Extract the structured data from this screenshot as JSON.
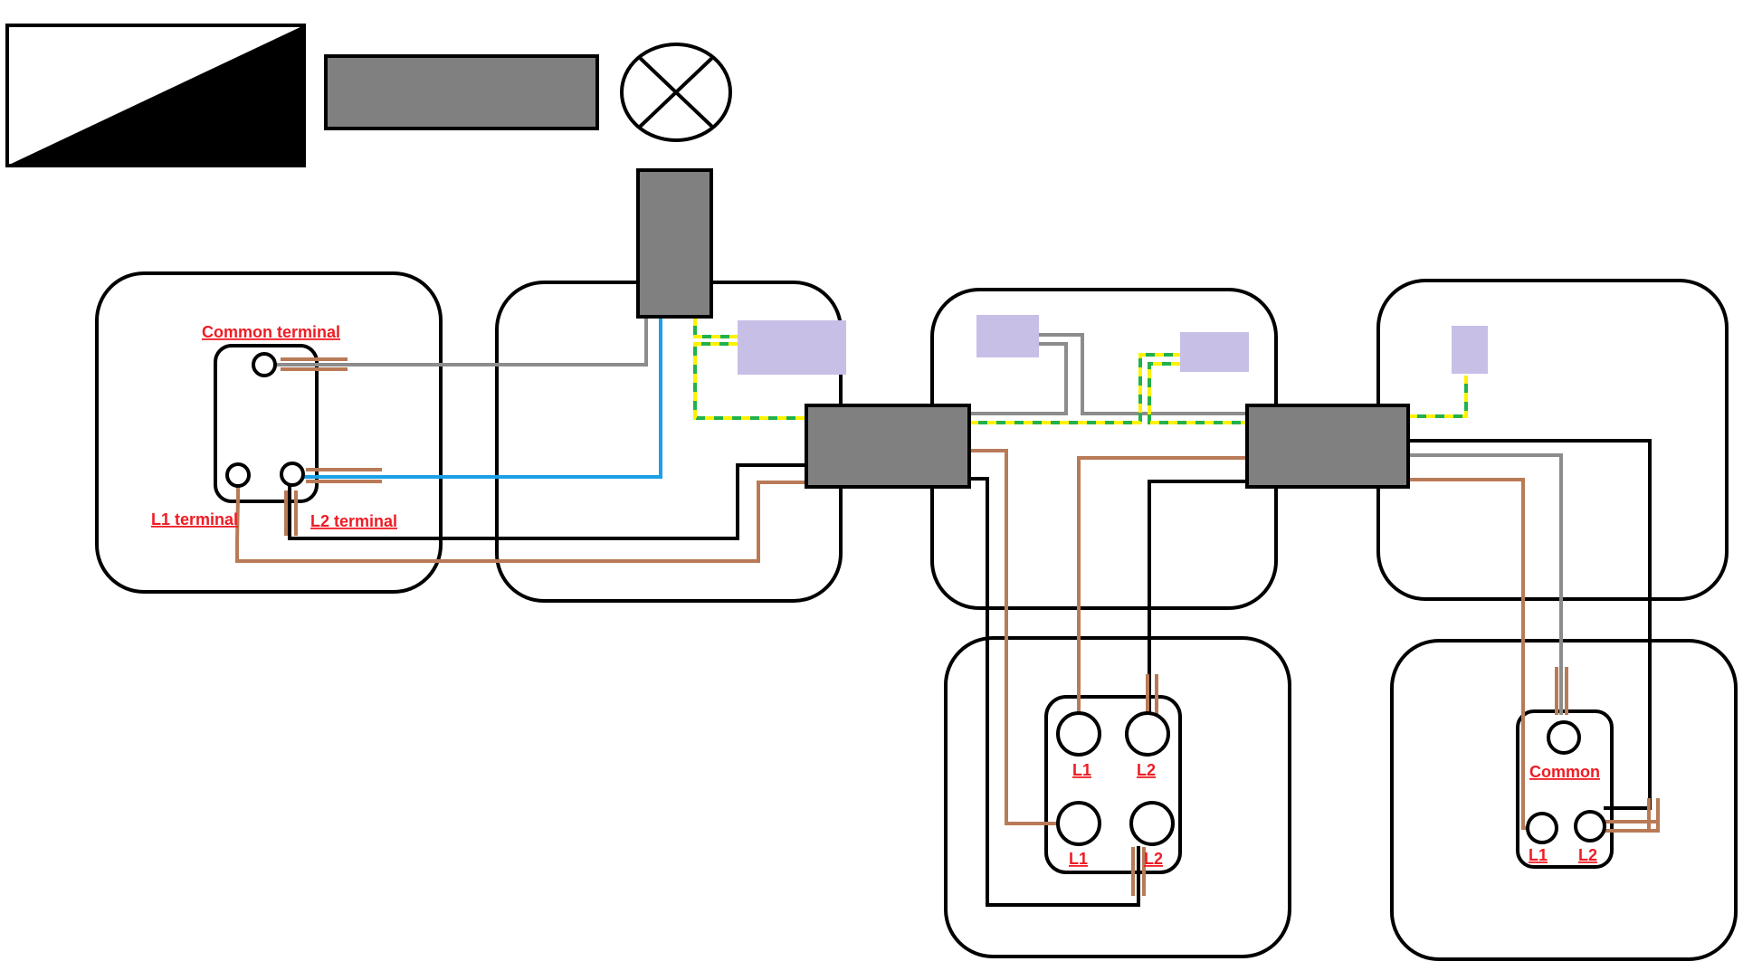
{
  "labels": {
    "common_terminal": "Common terminal",
    "l1_terminal": "L1 terminal",
    "l2_terminal": "L2 terminal",
    "intermediate_l1_top": "L1",
    "intermediate_l2_top": "L2",
    "intermediate_l1_bottom": "L1",
    "intermediate_l2_bottom": "L2",
    "two_way_common": "Common",
    "two_way_l1": "L1",
    "two_way_l2": "L2"
  },
  "colors": {
    "outline": "#000000",
    "grey_block": "#808080",
    "connector": "#c8bfe7",
    "grey_wire": "#8c8c8c",
    "blue_wire": "#1aa0e6",
    "brown_wire": "#b97a57",
    "black_wire": "#000000",
    "earth_green": "#22b14c",
    "earth_yellow": "#fff200",
    "label_red": "#ee1c24"
  }
}
